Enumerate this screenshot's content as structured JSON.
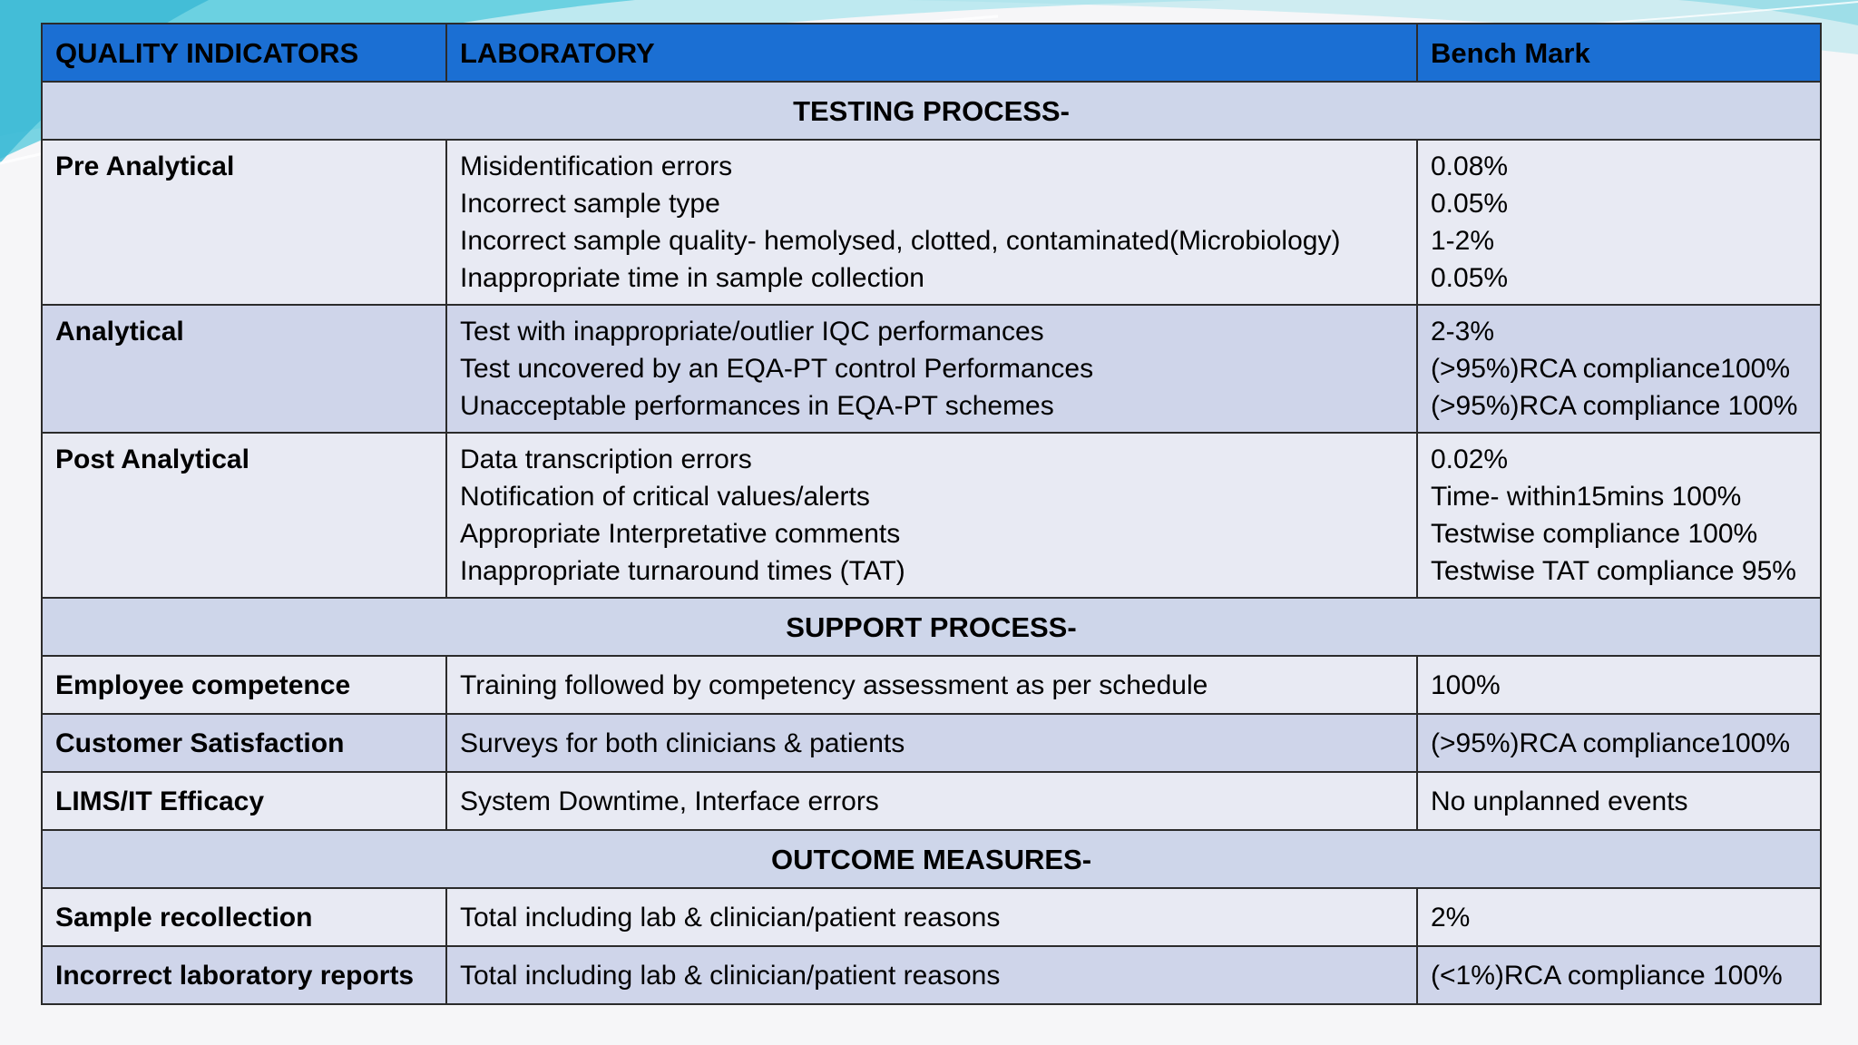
{
  "header": {
    "col1": "QUALITY INDICATORS",
    "col2": "LABORATORY",
    "col3": "Bench Mark"
  },
  "sections": {
    "testing": "TESTING PROCESS-",
    "support": "SUPPORT PROCESS-",
    "outcome": "OUTCOME MEASURES-"
  },
  "rows": {
    "pre_analytical": {
      "label": "Pre Analytical",
      "items": [
        "Misidentification errors",
        "Incorrect sample type",
        "Incorrect sample quality- hemolysed, clotted, contaminated(Microbiology)",
        "Inappropriate time in sample collection"
      ],
      "benchmarks": [
        "0.08%",
        "0.05%",
        "1-2%",
        "0.05%"
      ]
    },
    "analytical": {
      "label": "Analytical",
      "items": [
        "Test with inappropriate/outlier IQC performances",
        "Test uncovered by an EQA-PT control Performances",
        "Unacceptable performances in EQA-PT schemes"
      ],
      "benchmarks": [
        "2-3%",
        "(>95%)RCA compliance100%",
        "(>95%)RCA compliance 100%"
      ]
    },
    "post_analytical": {
      "label": "Post Analytical",
      "items": [
        "Data transcription errors",
        "Notification of critical values/alerts",
        "Appropriate Interpretative comments",
        "Inappropriate turnaround times (TAT)"
      ],
      "benchmarks": [
        "0.02%",
        "Time- within15mins 100%",
        "Testwise compliance 100%",
        "Testwise TAT compliance 95%"
      ]
    },
    "employee": {
      "label": "Employee competence",
      "item": "Training followed by competency assessment as per schedule",
      "benchmark": "100%"
    },
    "customer": {
      "label": "Customer Satisfaction",
      "item": "Surveys for both clinicians & patients",
      "benchmark": "(>95%)RCA compliance100%"
    },
    "lims": {
      "label": "LIMS/IT Efficacy",
      "item": "System Downtime, Interface errors",
      "benchmark": "No unplanned events"
    },
    "recollection": {
      "label": "Sample recollection",
      "item": "Total including lab & clinician/patient reasons",
      "benchmark": "2%"
    },
    "incorrect_reports": {
      "label": "Incorrect laboratory reports",
      "item": "Total including lab & clinician/patient reasons",
      "benchmark": "(<1%)RCA compliance 100%"
    }
  },
  "colors": {
    "header": "#1b6fd3",
    "section": "#ced6ea",
    "row_light": "#e8eaf3",
    "row_dark": "#cfd5ea",
    "accent_teal": "#5fd0e0"
  }
}
